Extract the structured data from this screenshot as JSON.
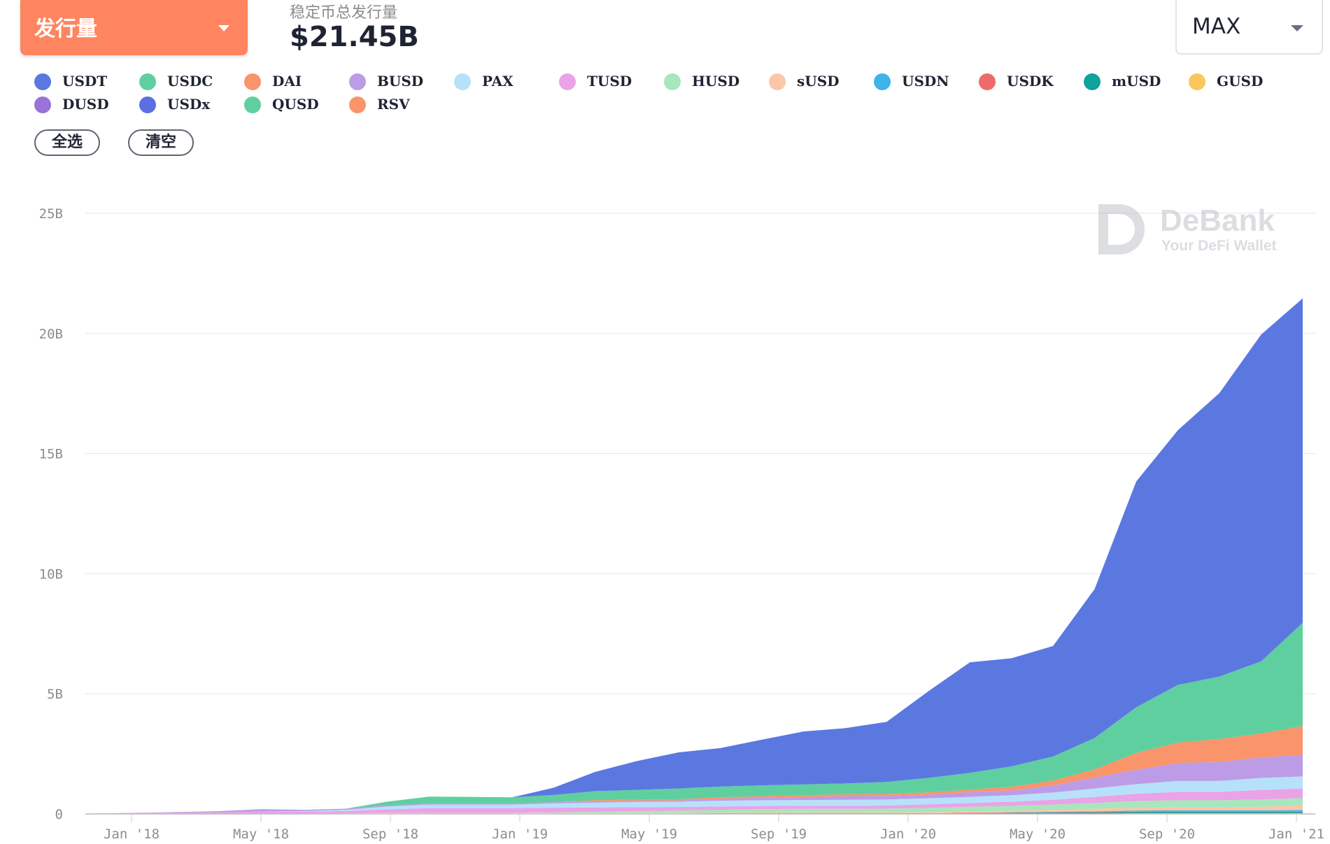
{
  "header": {
    "metric_select_label": "发行量",
    "summary_label": "稳定币总发行量",
    "summary_value": "$21.45B",
    "range_select_label": "MAX"
  },
  "legend": {
    "items": [
      {
        "name": "USDT",
        "color": "#5b78e1"
      },
      {
        "name": "USDC",
        "color": "#5fcf9f"
      },
      {
        "name": "DAI",
        "color": "#f9946b"
      },
      {
        "name": "BUSD",
        "color": "#bc9ce6"
      },
      {
        "name": "PAX",
        "color": "#b7e1fa"
      },
      {
        "name": "TUSD",
        "color": "#e9a3e6"
      },
      {
        "name": "HUSD",
        "color": "#a8e6bc"
      },
      {
        "name": "sUSD",
        "color": "#fcc6a8"
      },
      {
        "name": "USDN",
        "color": "#3fb2ea"
      },
      {
        "name": "USDK",
        "color": "#ee6b6b"
      },
      {
        "name": "mUSD",
        "color": "#0ea29a"
      },
      {
        "name": "GUSD",
        "color": "#fbc65c"
      },
      {
        "name": "DUSD",
        "color": "#9b72d8"
      },
      {
        "name": "USDx",
        "color": "#5d6ee2"
      },
      {
        "name": "QUSD",
        "color": "#5fcf9f"
      },
      {
        "name": "RSV",
        "color": "#f9946b"
      }
    ],
    "select_all_label": "全选",
    "clear_label": "清空"
  },
  "watermark": {
    "brand": "DeBank",
    "tagline": "Your DeFi Wallet"
  },
  "chart_data": {
    "type": "area",
    "stacked": true,
    "grid": true,
    "ylim": [
      0,
      25
    ],
    "y_unit": "B",
    "y_ticks": [
      "0",
      "5B",
      "10B",
      "15B",
      "20B",
      "25B"
    ],
    "x_ticks": [
      "Jan '18",
      "May '18",
      "Sep '18",
      "Jan '19",
      "May '19",
      "Sep '19",
      "Jan '20",
      "May '20",
      "Sep '20",
      "Jan '21"
    ],
    "x": [
      "Dec '17",
      "Jan '18",
      "Mar '18",
      "May '18",
      "Jul '18",
      "Sep '18",
      "Oct '18",
      "Nov '18",
      "Jan '19",
      "Mar '19",
      "May '19",
      "Jun '19",
      "Aug '19",
      "Sep '19",
      "Oct '19",
      "Dec '19",
      "Jan '20",
      "Feb '20",
      "Mar '20",
      "Apr '20",
      "May '20",
      "Jun '20",
      "Jul '20",
      "Aug '20",
      "Sep '20",
      "Oct '20",
      "Nov '20",
      "Dec '20",
      "Jan '21",
      "Feb '21"
    ],
    "series": [
      {
        "name": "USDT",
        "color": "#5b78e1",
        "values": [
          0,
          0,
          0,
          0,
          0,
          0,
          0,
          0,
          0,
          0,
          0,
          0.3,
          0.8,
          1.2,
          1.5,
          1.6,
          1.9,
          2.2,
          2.3,
          2.5,
          3.6,
          4.6,
          4.5,
          4.6,
          6.2,
          9.4,
          10.6,
          11.8,
          13.6,
          13.5
        ]
      },
      {
        "name": "USDC",
        "color": "#5fcf9f",
        "values": [
          0,
          0,
          0,
          0,
          0,
          0,
          0,
          0.15,
          0.28,
          0.27,
          0.25,
          0.3,
          0.38,
          0.4,
          0.45,
          0.45,
          0.45,
          0.45,
          0.45,
          0.5,
          0.6,
          0.7,
          0.85,
          1.0,
          1.3,
          1.9,
          2.4,
          2.6,
          3.0,
          4.3
        ]
      },
      {
        "name": "DAI",
        "color": "#f9946b",
        "values": [
          0,
          0,
          0,
          0,
          0,
          0,
          0,
          0,
          0,
          0,
          0,
          0,
          0.05,
          0.05,
          0.05,
          0.06,
          0.07,
          0.08,
          0.08,
          0.08,
          0.1,
          0.1,
          0.15,
          0.2,
          0.35,
          0.7,
          0.85,
          0.95,
          1.0,
          1.2
        ]
      },
      {
        "name": "BUSD",
        "color": "#bc9ce6",
        "values": [
          0,
          0,
          0.02,
          0.05,
          0.1,
          0.05,
          0.05,
          0.05,
          0.05,
          0.05,
          0.05,
          0.05,
          0.05,
          0.05,
          0.05,
          0.08,
          0.1,
          0.12,
          0.15,
          0.15,
          0.15,
          0.2,
          0.2,
          0.3,
          0.45,
          0.6,
          0.75,
          0.8,
          0.85,
          0.9
        ]
      },
      {
        "name": "PAX",
        "color": "#b7e1fa",
        "values": [
          0,
          0,
          0,
          0,
          0,
          0.02,
          0.05,
          0.12,
          0.15,
          0.15,
          0.15,
          0.18,
          0.2,
          0.22,
          0.22,
          0.24,
          0.24,
          0.24,
          0.25,
          0.25,
          0.25,
          0.25,
          0.27,
          0.3,
          0.35,
          0.4,
          0.45,
          0.45,
          0.5,
          0.5
        ]
      },
      {
        "name": "TUSD",
        "color": "#e9a3e6",
        "values": [
          0.02,
          0.05,
          0.06,
          0.07,
          0.1,
          0.1,
          0.1,
          0.15,
          0.2,
          0.2,
          0.2,
          0.2,
          0.18,
          0.16,
          0.15,
          0.14,
          0.13,
          0.13,
          0.13,
          0.13,
          0.15,
          0.16,
          0.18,
          0.2,
          0.25,
          0.3,
          0.35,
          0.35,
          0.4,
          0.4
        ]
      },
      {
        "name": "HUSD",
        "color": "#a8e6bc",
        "values": [
          0,
          0,
          0,
          0,
          0,
          0,
          0,
          0,
          0,
          0,
          0,
          0.02,
          0.05,
          0.08,
          0.1,
          0.12,
          0.14,
          0.15,
          0.15,
          0.16,
          0.18,
          0.2,
          0.2,
          0.22,
          0.25,
          0.28,
          0.3,
          0.3,
          0.3,
          0.3
        ]
      },
      {
        "name": "sUSD",
        "color": "#fcc6a8",
        "values": [
          0,
          0,
          0,
          0,
          0,
          0,
          0.01,
          0.02,
          0.02,
          0.02,
          0.02,
          0.02,
          0.02,
          0.02,
          0.02,
          0.02,
          0.03,
          0.03,
          0.03,
          0.03,
          0.04,
          0.05,
          0.06,
          0.08,
          0.1,
          0.12,
          0.12,
          0.12,
          0.15,
          0.2
        ]
      },
      {
        "name": "USDN",
        "color": "#3fb2ea",
        "values": [
          0,
          0,
          0,
          0,
          0,
          0,
          0,
          0,
          0,
          0,
          0,
          0,
          0,
          0,
          0,
          0,
          0,
          0,
          0,
          0,
          0,
          0,
          0.01,
          0.02,
          0.03,
          0.04,
          0.05,
          0.05,
          0.05,
          0.06
        ]
      },
      {
        "name": "USDK",
        "color": "#ee6b6b",
        "values": [
          0,
          0,
          0,
          0,
          0,
          0,
          0,
          0,
          0,
          0,
          0,
          0,
          0,
          0,
          0,
          0.01,
          0.01,
          0.01,
          0.01,
          0.01,
          0.01,
          0.02,
          0.02,
          0.02,
          0.02,
          0.02,
          0.02,
          0.02,
          0.02,
          0.02
        ]
      },
      {
        "name": "mUSD",
        "color": "#0ea29a",
        "values": [
          0,
          0,
          0,
          0,
          0,
          0,
          0,
          0,
          0,
          0,
          0,
          0,
          0,
          0,
          0,
          0,
          0,
          0,
          0,
          0,
          0,
          0.01,
          0.02,
          0.03,
          0.04,
          0.05,
          0.05,
          0.05,
          0.05,
          0.05
        ]
      },
      {
        "name": "GUSD",
        "color": "#fbc65c",
        "values": [
          0,
          0,
          0,
          0,
          0,
          0,
          0.01,
          0.02,
          0.02,
          0.02,
          0.02,
          0.02,
          0.02,
          0.02,
          0.02,
          0.02,
          0.02,
          0.02,
          0.02,
          0.02,
          0.02,
          0.02,
          0.02,
          0.02,
          0.02,
          0.03,
          0.03,
          0.03,
          0.03,
          0.03
        ]
      }
    ]
  }
}
